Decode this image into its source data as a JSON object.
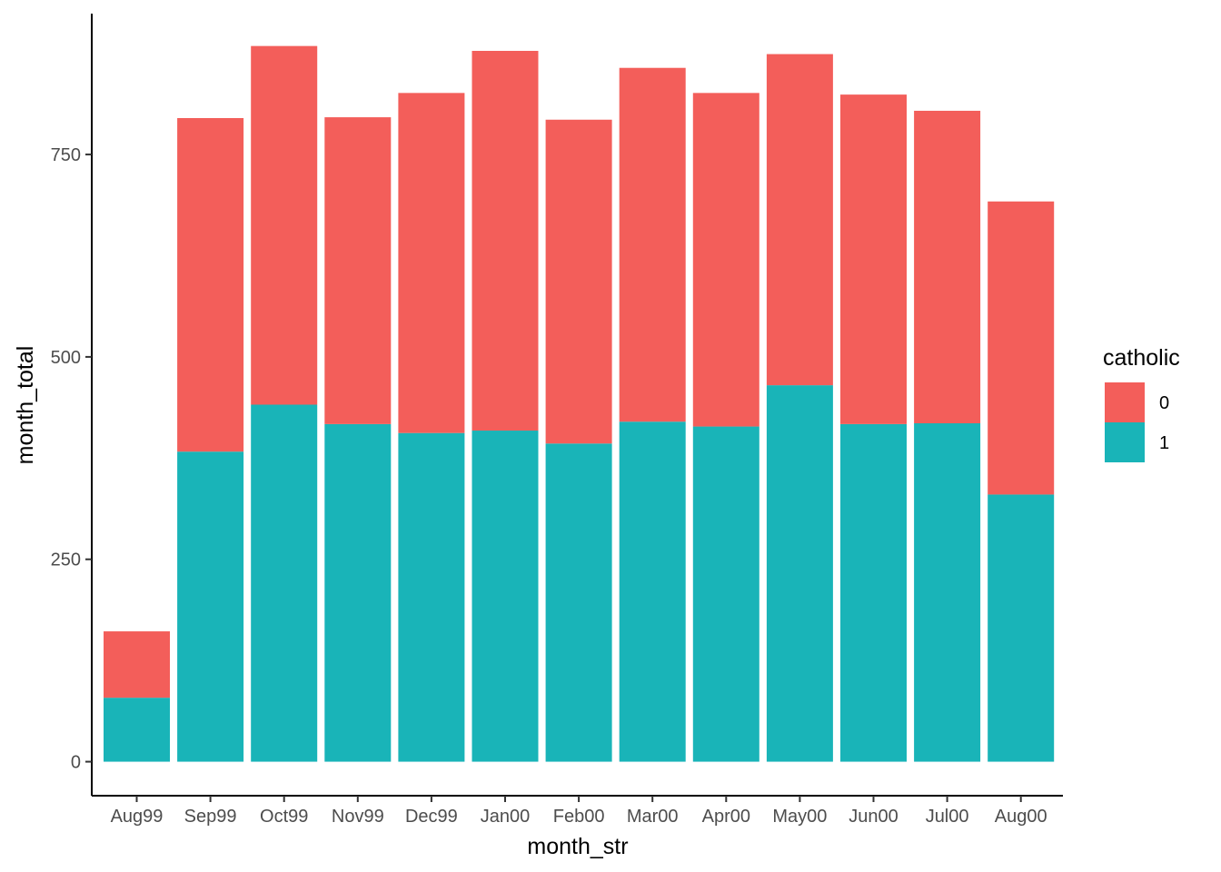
{
  "chart_data": {
    "type": "bar",
    "stacked": true,
    "title": "",
    "xlabel": "month_str",
    "ylabel": "month_total",
    "categories": [
      "Aug99",
      "Sep99",
      "Oct99",
      "Nov99",
      "Dec99",
      "Jan00",
      "Feb00",
      "Mar00",
      "Apr00",
      "May00",
      "Jun00",
      "Jul00",
      "Aug00"
    ],
    "series": [
      {
        "name": "0",
        "color": "#F35E5A",
        "values": [
          82,
          412,
          443,
          379,
          420,
          469,
          400,
          437,
          412,
          409,
          407,
          386,
          362
        ]
      },
      {
        "name": "1",
        "color": "#19B4B8",
        "values": [
          79,
          383,
          441,
          417,
          406,
          409,
          393,
          420,
          414,
          465,
          417,
          418,
          330
        ]
      }
    ],
    "yticks": [
      0,
      250,
      500,
      750
    ],
    "ytick_labels": [
      "0",
      "250",
      "500",
      "750"
    ],
    "ylim": [
      -42,
      924
    ],
    "grid": false,
    "legend": {
      "title": "catholic",
      "position": "right",
      "entries": [
        "0",
        "1"
      ]
    }
  }
}
